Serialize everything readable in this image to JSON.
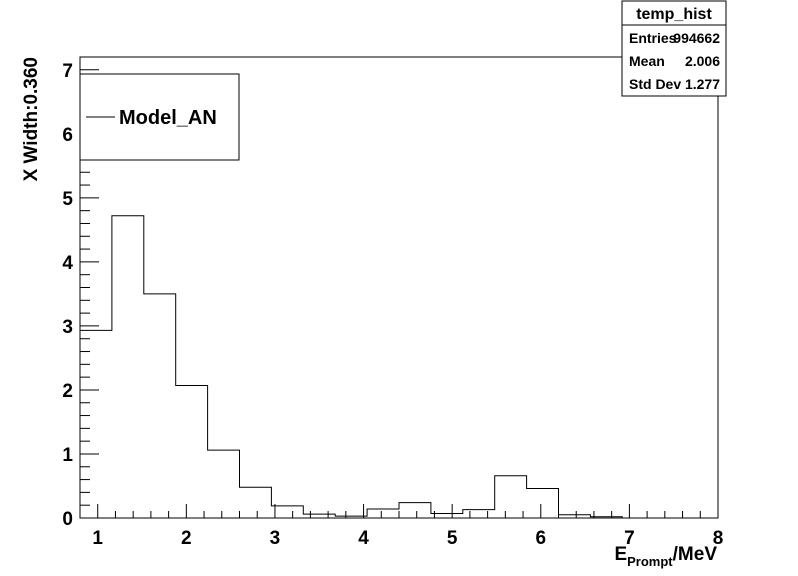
{
  "chart_data": {
    "type": "histogram",
    "title": "",
    "xlabel": {
      "main": "E",
      "sub": "Prompt",
      "unit": "/MeV"
    },
    "ylabel": "X Width:0.360",
    "xlim": [
      0.8,
      8.0
    ],
    "ylim": [
      0,
      7.2
    ],
    "x_ticks": [
      1,
      2,
      3,
      4,
      5,
      6,
      7,
      8
    ],
    "y_ticks": [
      0,
      1,
      2,
      3,
      4,
      5,
      6,
      7
    ],
    "bin_width": 0.36,
    "bin_edges": [
      0.8,
      1.16,
      1.52,
      1.88,
      2.24,
      2.6,
      2.96,
      3.32,
      3.68,
      4.04,
      4.4,
      4.76,
      5.12,
      5.48,
      5.84,
      6.2,
      6.56,
      6.92,
      7.28,
      7.64,
      8.0
    ],
    "values": [
      2.93,
      4.72,
      3.5,
      2.07,
      1.06,
      0.48,
      0.19,
      0.06,
      0.03,
      0.14,
      0.24,
      0.07,
      0.13,
      0.66,
      0.46,
      0.05,
      0.02,
      0.0,
      0.0,
      0.0
    ],
    "line_color": "#000000",
    "legend": {
      "entries": [
        "Model_AN"
      ],
      "position": "top-left"
    },
    "stats": {
      "title": "temp_hist",
      "rows": [
        {
          "label": "Entries",
          "value": "994662"
        },
        {
          "label": "Mean",
          "value": "2.006"
        },
        {
          "label": "Std Dev",
          "value": "1.277"
        }
      ]
    }
  }
}
